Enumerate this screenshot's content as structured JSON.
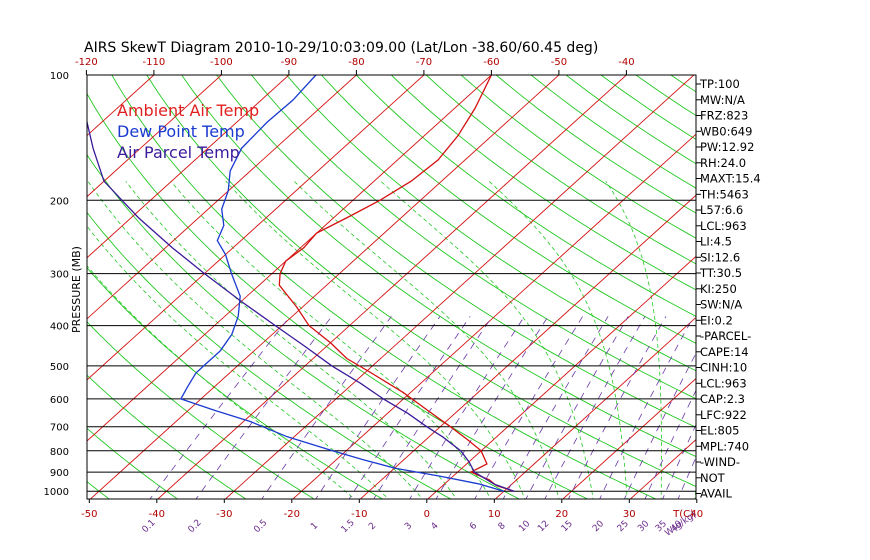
{
  "chart_data": {
    "type": "line",
    "title": "AIRS SkewT Diagram 2010-10-29/10:03:09.00 (Lat/Lon -38.60/60.45 deg)",
    "ylabel": "PRESSURE (MB)",
    "xlabel_right": "T(C)",
    "mix_label": "W(g/kg)",
    "y_scale": "log",
    "ylim": [
      1050,
      100
    ],
    "y_ticks": [
      100,
      200,
      300,
      400,
      500,
      600,
      700,
      800,
      900,
      1000
    ],
    "top_temp_ticks": [
      -120,
      -110,
      -100,
      -90,
      -80,
      -70,
      -60,
      -50,
      -40
    ],
    "bottom_temp_ticks": [
      -50,
      -40,
      -30,
      -20,
      -10,
      0,
      10,
      20,
      30,
      40
    ],
    "mixing_ratio_ticks": [
      "0.1",
      "0.2",
      "0.5",
      "1",
      "1.5",
      "2",
      "3",
      "4",
      "6",
      "8",
      "10",
      "12",
      "15",
      "20",
      "25",
      "30",
      "35",
      "40"
    ],
    "legend": [
      {
        "label": "Ambient Air Temp",
        "color": "#e02020"
      },
      {
        "label": "Dew Point Temp",
        "color": "#1a3ad0"
      },
      {
        "label": "Air Parcel Temp",
        "color": "#3a1a9a"
      }
    ],
    "series": [
      {
        "name": "Ambient Air Temp",
        "color": "#d41010",
        "points": [
          [
            1000,
            11.5
          ],
          [
            970,
            8
          ],
          [
            940,
            6
          ],
          [
            900,
            2
          ],
          [
            860,
            3
          ],
          [
            800,
            0
          ],
          [
            750,
            -4
          ],
          [
            700,
            -8.5
          ],
          [
            640,
            -14.5
          ],
          [
            580,
            -21
          ],
          [
            520,
            -29
          ],
          [
            480,
            -35
          ],
          [
            440,
            -40
          ],
          [
            400,
            -46
          ],
          [
            360,
            -51
          ],
          [
            320,
            -57
          ],
          [
            300,
            -58.8
          ],
          [
            280,
            -60
          ],
          [
            260,
            -59.5
          ],
          [
            240,
            -60
          ],
          [
            220,
            -58
          ],
          [
            200,
            -56
          ],
          [
            180,
            -54.5
          ],
          [
            160,
            -54
          ],
          [
            140,
            -55
          ],
          [
            120,
            -57
          ],
          [
            100,
            -60
          ]
        ]
      },
      {
        "name": "Dew Point Temp",
        "color": "#1a3ad0",
        "points": [
          [
            1000,
            10
          ],
          [
            960,
            5
          ],
          [
            920,
            -2
          ],
          [
            880,
            -10
          ],
          [
            840,
            -16
          ],
          [
            800,
            -22
          ],
          [
            740,
            -31
          ],
          [
            680,
            -39
          ],
          [
            640,
            -46
          ],
          [
            600,
            -53
          ],
          [
            560,
            -54
          ],
          [
            520,
            -55
          ],
          [
            500,
            -55
          ],
          [
            460,
            -55
          ],
          [
            420,
            -56
          ],
          [
            380,
            -58
          ],
          [
            340,
            -61
          ],
          [
            300,
            -66
          ],
          [
            270,
            -70
          ],
          [
            250,
            -73.5
          ],
          [
            230,
            -75
          ],
          [
            210,
            -78
          ],
          [
            190,
            -80
          ],
          [
            170,
            -83
          ],
          [
            150,
            -85
          ],
          [
            130,
            -85.5
          ],
          [
            115,
            -85.3
          ],
          [
            100,
            -86
          ]
        ]
      },
      {
        "name": "Air Parcel Temp",
        "color": "#3a1a9a",
        "points": [
          [
            1000,
            11.5
          ],
          [
            963,
            7.5
          ],
          [
            900,
            2.5
          ],
          [
            850,
            0
          ],
          [
            800,
            -3
          ],
          [
            740,
            -8
          ],
          [
            700,
            -12
          ],
          [
            650,
            -17
          ],
          [
            600,
            -23
          ],
          [
            550,
            -29
          ],
          [
            500,
            -36
          ],
          [
            450,
            -43
          ],
          [
            400,
            -51
          ],
          [
            350,
            -60
          ],
          [
            300,
            -70
          ],
          [
            260,
            -79
          ],
          [
            220,
            -89
          ],
          [
            180,
            -100
          ],
          [
            150,
            -107
          ],
          [
            120,
            -115
          ],
          [
            100,
            -121
          ]
        ]
      }
    ]
  },
  "stats": [
    "TP:100",
    "MW:N/A",
    "FRZ:823",
    "WB0:649",
    "PW:12.92",
    "RH:24.0",
    "MAXT:15.4",
    "TH:5463",
    "L57:6.6",
    "LCL:963",
    "LI:4.5",
    "SI:12.6",
    "TT:30.5",
    "KI:250",
    "SW:N/A",
    "EI:0.2",
    "-PARCEL-",
    "CAPE:14",
    "CINH:10",
    "LCL:963",
    "CAP:2.3",
    "LFC:922",
    "EL:805",
    "MPL:740",
    "-WIND-",
    "NOT",
    "AVAIL"
  ]
}
